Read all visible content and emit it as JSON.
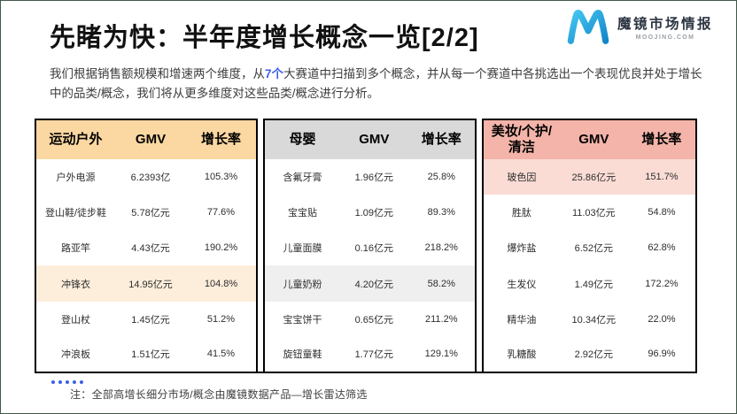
{
  "slide": {
    "title": "先睹为快：半年度增长概念一览[2/2]",
    "intro": {
      "part1": "我们根据销售额规模和增速两个维度，从",
      "highlight": "7个",
      "part2": "大赛道中扫描到多个概念，并从每一个赛道中各挑选出一个表现优良并处于增长中的品类/概念，我们将从更多维度对这些品类/概念进行分析。"
    },
    "note": "注：全部高增长细分市场/概念由魔镜数据产品—增长雷达筛选"
  },
  "logo": {
    "mark": "moojing-m-icon",
    "brand_cn": "魔镜市场情报",
    "brand_en": "MOOJING.COM"
  },
  "colors": {
    "accent_blue": "#3E5FE8",
    "logo_blue_light": "#45C6F2",
    "logo_blue_dark": "#1286C9",
    "sports_header_bg": "#FBD8A2",
    "sports_highlight_bg": "#FDEEDB",
    "baby_header_bg": "#D9D9D9",
    "baby_highlight_bg": "#EFEFEF",
    "beauty_header_bg": "#F4B4A9",
    "beauty_highlight_bg": "#FADCD5"
  },
  "tables": [
    {
      "category_header": "运动户外",
      "columns": [
        "GMV",
        "增长率"
      ],
      "header_bg": "#FBD8A2",
      "highlight_bg": "#FDEEDB",
      "highlight_row": 3,
      "rows": [
        {
          "name": "户外电源",
          "gmv": "6.2393亿",
          "growth": "105.3%"
        },
        {
          "name": "登山鞋/徒步鞋",
          "gmv": "5.78亿元",
          "growth": "77.6%"
        },
        {
          "name": "路亚竿",
          "gmv": "4.43亿元",
          "growth": "190.2%"
        },
        {
          "name": "冲锋衣",
          "gmv": "14.95亿元",
          "growth": "104.8%"
        },
        {
          "name": "登山杖",
          "gmv": "1.45亿元",
          "growth": "51.2%"
        },
        {
          "name": "冲浪板",
          "gmv": "1.51亿元",
          "growth": "41.5%"
        }
      ]
    },
    {
      "category_header": "母婴",
      "columns": [
        "GMV",
        "增长率"
      ],
      "header_bg": "#D9D9D9",
      "highlight_bg": "#EFEFEF",
      "highlight_row": 3,
      "rows": [
        {
          "name": "含氟牙膏",
          "gmv": "1.96亿元",
          "growth": "25.8%"
        },
        {
          "name": "宝宝贴",
          "gmv": "1.09亿元",
          "growth": "89.3%"
        },
        {
          "name": "儿童面膜",
          "gmv": "0.16亿元",
          "growth": "218.2%"
        },
        {
          "name": "儿童奶粉",
          "gmv": "4.20亿元",
          "growth": "58.2%"
        },
        {
          "name": "宝宝饼干",
          "gmv": "0.65亿元",
          "growth": "211.2%"
        },
        {
          "name": "旋钮童鞋",
          "gmv": "1.77亿元",
          "growth": "129.1%"
        }
      ]
    },
    {
      "category_header": "美妆/个护/清洁",
      "columns": [
        "GMV",
        "增长率"
      ],
      "header_bg": "#F4B4A9",
      "highlight_bg": "#FADCD5",
      "highlight_row": 0,
      "rows": [
        {
          "name": "玻色因",
          "gmv": "25.86亿元",
          "growth": "151.7%"
        },
        {
          "name": "胜肽",
          "gmv": "11.03亿元",
          "growth": "54.8%"
        },
        {
          "name": "爆炸盐",
          "gmv": "6.52亿元",
          "growth": "62.8%"
        },
        {
          "name": "生发仪",
          "gmv": "1.49亿元",
          "growth": "172.2%"
        },
        {
          "name": "精华油",
          "gmv": "10.34亿元",
          "growth": "22.0%"
        },
        {
          "name": "乳糖酸",
          "gmv": "2.92亿元",
          "growth": "96.9%"
        }
      ]
    }
  ]
}
